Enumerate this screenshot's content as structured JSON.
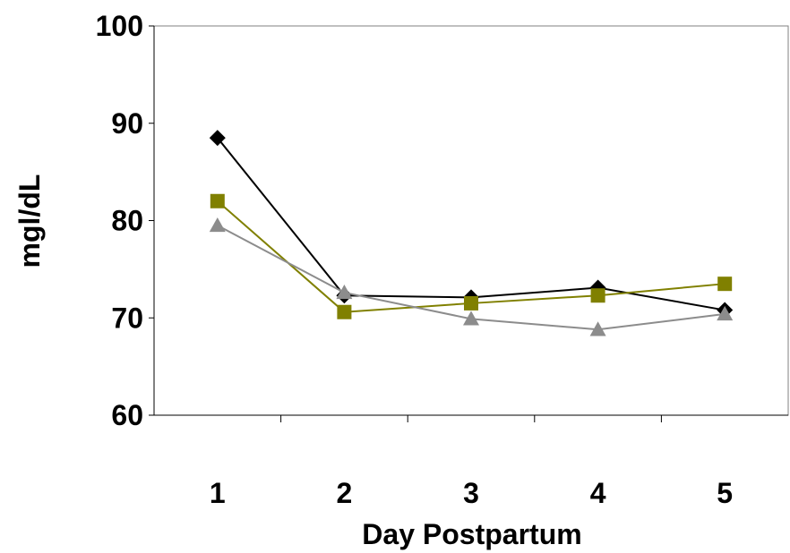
{
  "chart_data": {
    "type": "line",
    "title": "",
    "xlabel": "Day Postpartum",
    "ylabel": "mgl/dL",
    "categories": [
      "1",
      "2",
      "3",
      "4",
      "5"
    ],
    "ylim": [
      60,
      100
    ],
    "yticks": [
      "60",
      "70",
      "80",
      "90",
      "100"
    ],
    "grid": false,
    "legend": "none",
    "series": [
      {
        "color": "#000000",
        "marker": "diamond",
        "values": [
          88.5,
          72.3,
          72.1,
          73.1,
          70.8
        ]
      },
      {
        "color": "#808000",
        "marker": "square",
        "values": [
          82.0,
          70.6,
          71.5,
          72.3,
          73.5
        ]
      },
      {
        "color": "#8c8c8c",
        "marker": "triangle",
        "values": [
          79.5,
          72.6,
          69.9,
          68.8,
          70.4
        ]
      }
    ]
  }
}
